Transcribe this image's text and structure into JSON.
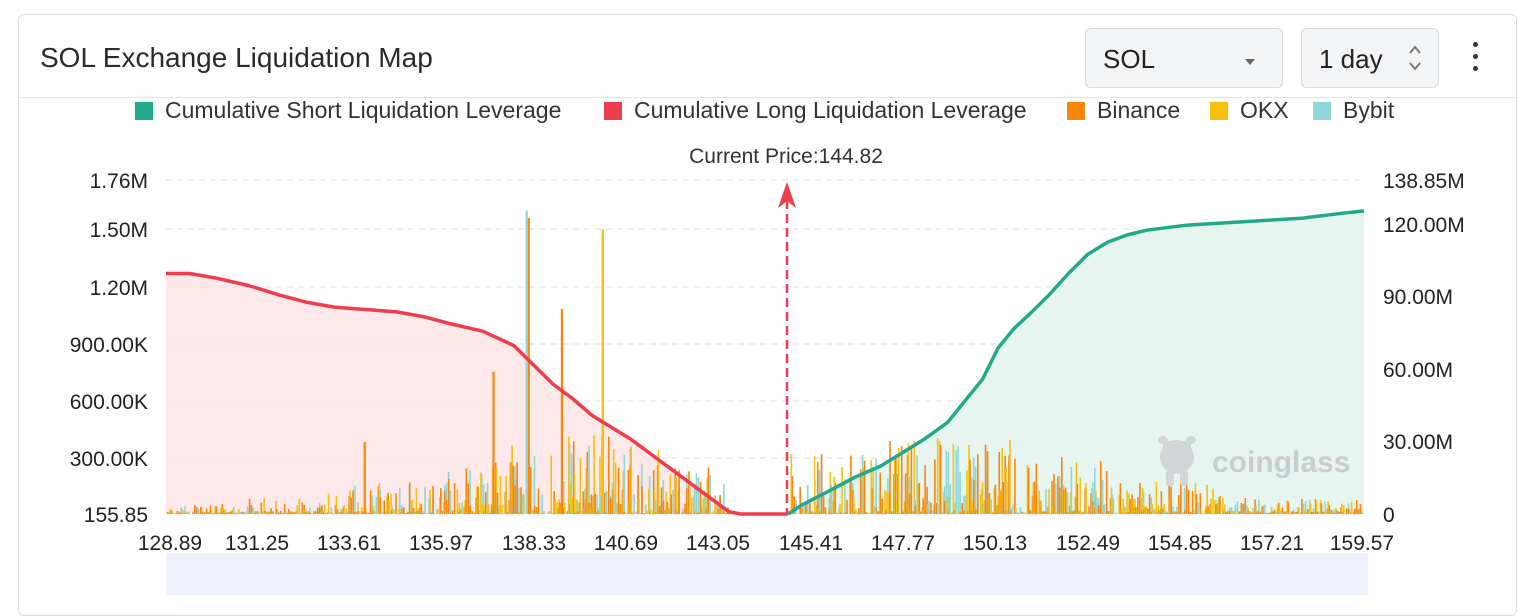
{
  "header": {
    "title": "SOL Exchange Liquidation Map",
    "coin_select": "SOL",
    "period_select": "1 day",
    "more_icon": "kebab-menu-icon"
  },
  "legend": [
    {
      "label": "Cumulative Short Liquidation Leverage",
      "color": "#22a98a"
    },
    {
      "label": "Cumulative Long Liquidation Leverage",
      "color": "#ee3d4c"
    },
    {
      "label": "Binance",
      "color": "#f7860b"
    },
    {
      "label": "OKX",
      "color": "#f7c10d"
    },
    {
      "label": "Bybit",
      "color": "#8fd6d8"
    }
  ],
  "watermark": "coinglass",
  "chart_data": {
    "type": "bar",
    "title": "SOL Exchange Liquidation Map",
    "current_price_label": "Current Price:144.82",
    "current_price": 144.82,
    "x_range": [
      128.89,
      159.57
    ],
    "x_ticks": [
      "128.89",
      "131.25",
      "133.61",
      "135.97",
      "138.33",
      "140.69",
      "143.05",
      "145.41",
      "147.77",
      "150.13",
      "152.49",
      "154.85",
      "157.21",
      "159.57"
    ],
    "left_axis": {
      "ticks": [
        "1.76M",
        "1.50M",
        "1.20M",
        "900.00K",
        "600.00K",
        "300.00K",
        "155.85"
      ],
      "tick_values": [
        1760000,
        1500000,
        1200000,
        900000,
        600000,
        300000,
        155.85
      ],
      "range": [
        0,
        1760000
      ]
    },
    "right_axis": {
      "ticks": [
        "138.85M",
        "120.00M",
        "90.00M",
        "60.00M",
        "30.00M",
        "0"
      ],
      "tick_values": [
        138850000,
        120000000,
        90000000,
        60000000,
        30000000,
        0
      ],
      "range": [
        0,
        138850000
      ]
    },
    "cumulative_long": {
      "name": "Cumulative Long Liquidation Leverage",
      "x": [
        128.89,
        129.5,
        130.2,
        131.0,
        131.8,
        132.5,
        133.2,
        134.0,
        134.8,
        135.5,
        136.2,
        137.0,
        137.8,
        138.3,
        138.8,
        139.3,
        139.8,
        140.3,
        140.8,
        141.3,
        141.8,
        142.3,
        142.8,
        143.3,
        143.6,
        144.0,
        144.82
      ],
      "y": [
        100,
        100,
        98,
        95,
        91,
        88,
        86,
        85,
        84,
        82,
        79,
        76,
        70,
        62,
        54,
        48,
        41,
        36,
        31,
        25,
        19,
        13,
        7,
        1,
        0,
        0,
        0
      ],
      "unit": "M"
    },
    "cumulative_short": {
      "name": "Cumulative Short Liquidation Leverage",
      "x": [
        144.82,
        145.2,
        145.8,
        146.5,
        147.2,
        147.8,
        148.3,
        148.9,
        149.3,
        149.8,
        150.2,
        150.6,
        151.0,
        151.5,
        152.0,
        152.5,
        153.0,
        153.5,
        154.0,
        155.0,
        156.0,
        157.0,
        158.0,
        159.0,
        159.57
      ],
      "y": [
        0,
        4,
        9,
        15,
        20,
        26,
        31,
        38,
        46,
        56,
        69,
        77,
        83,
        91,
        100,
        108,
        113,
        116,
        118,
        120,
        121,
        122,
        123,
        125,
        126
      ],
      "unit": "M"
    },
    "liquidation_bars": {
      "exchanges": [
        "Binance",
        "OKX",
        "Bybit"
      ],
      "notable_peaks": [
        {
          "x": 138.15,
          "exchange": "Binance",
          "value": 1560000
        },
        {
          "x": 138.1,
          "exchange": "Bybit",
          "value": 1600000
        },
        {
          "x": 140.05,
          "exchange": "Binance",
          "value": 1460000
        },
        {
          "x": 140.05,
          "exchange": "OKX",
          "value": 1500000
        },
        {
          "x": 139.0,
          "exchange": "Binance",
          "value": 1080000
        },
        {
          "x": 137.25,
          "exchange": "Binance",
          "value": 750000
        },
        {
          "x": 133.95,
          "exchange": "Binance",
          "value": 380000
        }
      ]
    }
  }
}
